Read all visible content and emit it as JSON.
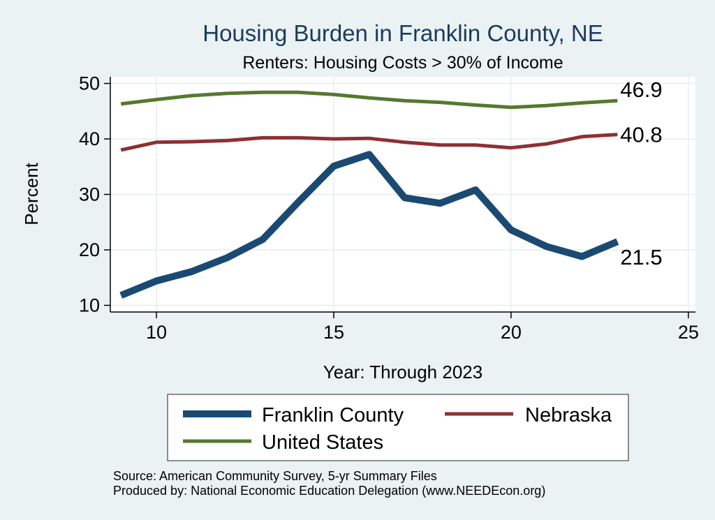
{
  "chart_data": {
    "type": "line",
    "title": "Housing Burden in Franklin County, NE",
    "subtitle": "Renters: Housing Costs > 30% of Income",
    "xlabel": "Year: Through 2023",
    "ylabel": "Percent",
    "xlim": [
      8.7,
      25.2
    ],
    "ylim": [
      8.8,
      51.2
    ],
    "xticks": [
      10,
      15,
      20,
      25
    ],
    "yticks": [
      10,
      20,
      30,
      40,
      50
    ],
    "grid": true,
    "legend_position": "bottom",
    "series": [
      {
        "name": "Franklin County",
        "color": "#1a4a72",
        "width": 10,
        "end_label": "21.5",
        "x": [
          9,
          10,
          11,
          12,
          13,
          14,
          15,
          16,
          17,
          18,
          19,
          20,
          21,
          22,
          23
        ],
        "y": [
          11.8,
          14.4,
          16.1,
          18.6,
          21.9,
          28.6,
          35.1,
          37.2,
          29.4,
          28.4,
          30.8,
          23.6,
          20.6,
          18.8,
          21.5
        ]
      },
      {
        "name": "Nebraska",
        "color": "#8e3033",
        "width": 5,
        "end_label": "40.8",
        "x": [
          9,
          10,
          11,
          12,
          13,
          14,
          15,
          16,
          17,
          18,
          19,
          20,
          21,
          22,
          23
        ],
        "y": [
          38.0,
          39.4,
          39.5,
          39.7,
          40.2,
          40.2,
          40.0,
          40.1,
          39.4,
          38.9,
          38.9,
          38.4,
          39.1,
          40.4,
          40.8
        ]
      },
      {
        "name": "United States",
        "color": "#55792f",
        "width": 5,
        "end_label": "46.9",
        "x": [
          9,
          10,
          11,
          12,
          13,
          14,
          15,
          16,
          17,
          18,
          19,
          20,
          21,
          22,
          23
        ],
        "y": [
          46.3,
          47.1,
          47.8,
          48.2,
          48.4,
          48.4,
          48.0,
          47.4,
          46.9,
          46.6,
          46.1,
          45.7,
          46.0,
          46.5,
          46.9
        ]
      }
    ]
  },
  "notes": {
    "source": "Source: American Community Survey, 5-yr Summary Files",
    "produced": "Produced by: National Economic Education Delegation (www.NEEDEcon.org)"
  }
}
